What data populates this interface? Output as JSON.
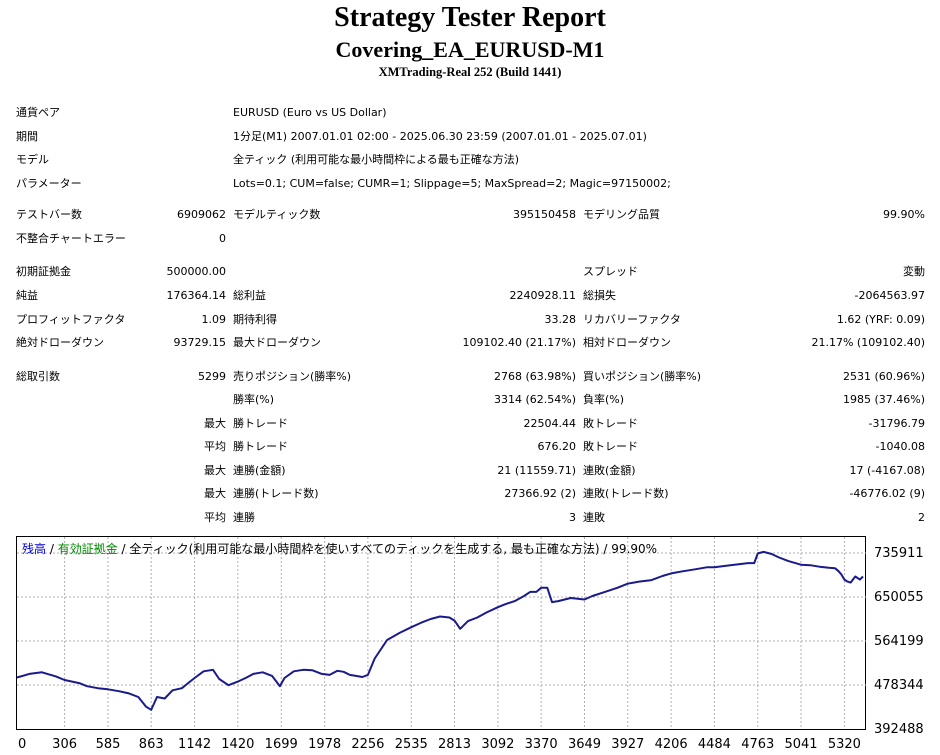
{
  "header": {
    "title": "Strategy Tester Report",
    "subtitle": "Covering_EA_EURUSD-M1",
    "server": "XMTrading-Real 252 (Build 1441)"
  },
  "info": {
    "pair_label": "通貨ペア",
    "pair_value": "EURUSD (Euro vs US Dollar)",
    "period_label": "期間",
    "period_value": "1分足(M1) 2007.01.01 02:00 - 2025.06.30 23:59 (2007.01.01 - 2025.07.01)",
    "model_label": "モデル",
    "model_value": "全ティック (利用可能な最小時間枠による最も正確な方法)",
    "params_label": "パラメーター",
    "params_value": "Lots=0.1; CUM=false; CUMR=1; Slippage=5; MaxSpread=2; Magic=97150002;"
  },
  "stats": {
    "bars_label": "テストバー数",
    "bars_value": "6909062",
    "ticks_label": "モデルティック数",
    "ticks_value": "395150458",
    "quality_label": "モデリング品質",
    "quality_value": "99.90%",
    "mismatch_label": "不整合チャートエラー",
    "mismatch_value": "0",
    "deposit_label": "初期証拠金",
    "deposit_value": "500000.00",
    "spread_label": "スプレッド",
    "spread_value": "変動",
    "net_label": "純益",
    "net_value": "176364.14",
    "gross_profit_label": "総利益",
    "gross_profit_value": "2240928.11",
    "gross_loss_label": "総損失",
    "gross_loss_value": "-2064563.97",
    "pf_label": "プロフィットファクタ",
    "pf_value": "1.09",
    "expected_label": "期待利得",
    "expected_value": "33.28",
    "recovery_label": "リカバリーファクタ",
    "recovery_value": "1.62 (YRF: 0.09)",
    "abs_dd_label": "絶対ドローダウン",
    "abs_dd_value": "93729.15",
    "max_dd_label": "最大ドローダウン",
    "max_dd_value": "109102.40 (21.17%)",
    "rel_dd_label": "相対ドローダウン",
    "rel_dd_value": "21.17% (109102.40)",
    "total_label": "総取引数",
    "total_value": "5299",
    "short_label": "売りポジション(勝率%)",
    "short_value": "2768 (63.98%)",
    "long_label": "買いポジション(勝率%)",
    "long_value": "2531 (60.96%)",
    "win_pct_label": "勝率(%)",
    "win_pct_value": "3314 (62.54%)",
    "loss_pct_label": "負率(%)",
    "loss_pct_value": "1985 (37.46%)",
    "max_label": "最大",
    "avg_label": "平均",
    "win_trade_label": "勝トレード",
    "loss_trade_label": "敗トレード",
    "largest_win_value": "22504.44",
    "largest_loss_value": "-31796.79",
    "avg_win_value": "676.20",
    "avg_loss_value": "-1040.08",
    "cons_win_money_label": "連勝(金額)",
    "cons_win_money_value": "21 (11559.71)",
    "cons_loss_money_label": "連敗(金額)",
    "cons_loss_money_value": "17 (-4167.08)",
    "cons_win_trades_label": "連勝(トレード数)",
    "cons_win_trades_value": "27366.92 (2)",
    "cons_loss_trades_label": "連敗(トレード数)",
    "cons_loss_trades_value": "-46776.02 (9)",
    "avg_cons_win_label": "連勝",
    "avg_cons_win_value": "3",
    "avg_cons_loss_label": "連敗",
    "avg_cons_loss_value": "2"
  },
  "legend": {
    "balance": "残高",
    "sep1": " / ",
    "equity": "有効証拠金",
    "sep2": " / ",
    "rest": "全ティック(利用可能な最小時間枠を使いすべてのティックを生成する, 最も正確な方法) / 99.90%",
    "balance_color": "#0000cc",
    "equity_color": "#008800"
  },
  "colors": {
    "line": "#1a1a8c",
    "grid": "#b0b0b0"
  },
  "chart_data": {
    "type": "line",
    "title": "",
    "xlabel": "",
    "ylabel": "",
    "x_ticks": [
      "0",
      "306",
      "585",
      "863",
      "1142",
      "1420",
      "1699",
      "1978",
      "2256",
      "2535",
      "2813",
      "3092",
      "3370",
      "3649",
      "3927",
      "4206",
      "4484",
      "4763",
      "5041",
      "5320"
    ],
    "y_ticks": [
      "735911",
      "650055",
      "564199",
      "478344",
      "392488"
    ],
    "xlim": [
      0,
      5459
    ],
    "ylim": [
      392488,
      767000
    ],
    "grid": true,
    "series": [
      {
        "x": [
          0,
          80,
          160,
          250,
          306,
          400,
          450,
          520,
          585,
          660,
          720,
          780,
          830,
          863,
          900,
          950,
          1000,
          1060,
          1100,
          1142,
          1200,
          1260,
          1300,
          1360,
          1420,
          1470,
          1520,
          1580,
          1640,
          1660,
          1690,
          1720,
          1780,
          1840,
          1900,
          1960,
          2010,
          2060,
          2100,
          2140,
          2180,
          2220,
          2256,
          2300,
          2380,
          2460,
          2535,
          2600,
          2660,
          2720,
          2780,
          2813,
          2850,
          2900,
          2960,
          3020,
          3092,
          3140,
          3200,
          3260,
          3300,
          3340,
          3370,
          3410,
          3440,
          3480,
          3560,
          3649,
          3700,
          3780,
          3860,
          3927,
          4000,
          4080,
          4150,
          4206,
          4280,
          4360,
          4440,
          4484,
          4560,
          4640,
          4700,
          4740,
          4763,
          4800,
          4850,
          4900,
          4960,
          5041,
          5100,
          5160,
          5220,
          5260,
          5280,
          5300,
          5320,
          5340,
          5360,
          5390,
          5420,
          5440
        ],
        "y": [
          493000,
          500000,
          503000,
          495000,
          488000,
          482000,
          476000,
          472000,
          470000,
          466000,
          462000,
          455000,
          436000,
          430000,
          455000,
          452000,
          468000,
          472000,
          482000,
          492000,
          505000,
          508000,
          490000,
          478000,
          485000,
          492000,
          500000,
          503000,
          496000,
          488000,
          476000,
          492000,
          505000,
          508000,
          507000,
          500000,
          498000,
          506000,
          504000,
          498000,
          496000,
          494000,
          498000,
          530000,
          566000,
          580000,
          591000,
          600000,
          607000,
          612000,
          610000,
          604000,
          588000,
          603000,
          610000,
          620000,
          630000,
          636000,
          642000,
          652000,
          660000,
          660000,
          668000,
          668000,
          640000,
          642000,
          648000,
          645000,
          652000,
          660000,
          668000,
          676000,
          680000,
          683000,
          691000,
          696000,
          700000,
          704000,
          708000,
          708000,
          711000,
          714000,
          716000,
          716000,
          735000,
          738000,
          734000,
          727000,
          720000,
          713000,
          712000,
          709000,
          707000,
          706000,
          701000,
          694000,
          684000,
          680000,
          678000,
          690000,
          684000,
          690000
        ]
      }
    ]
  }
}
